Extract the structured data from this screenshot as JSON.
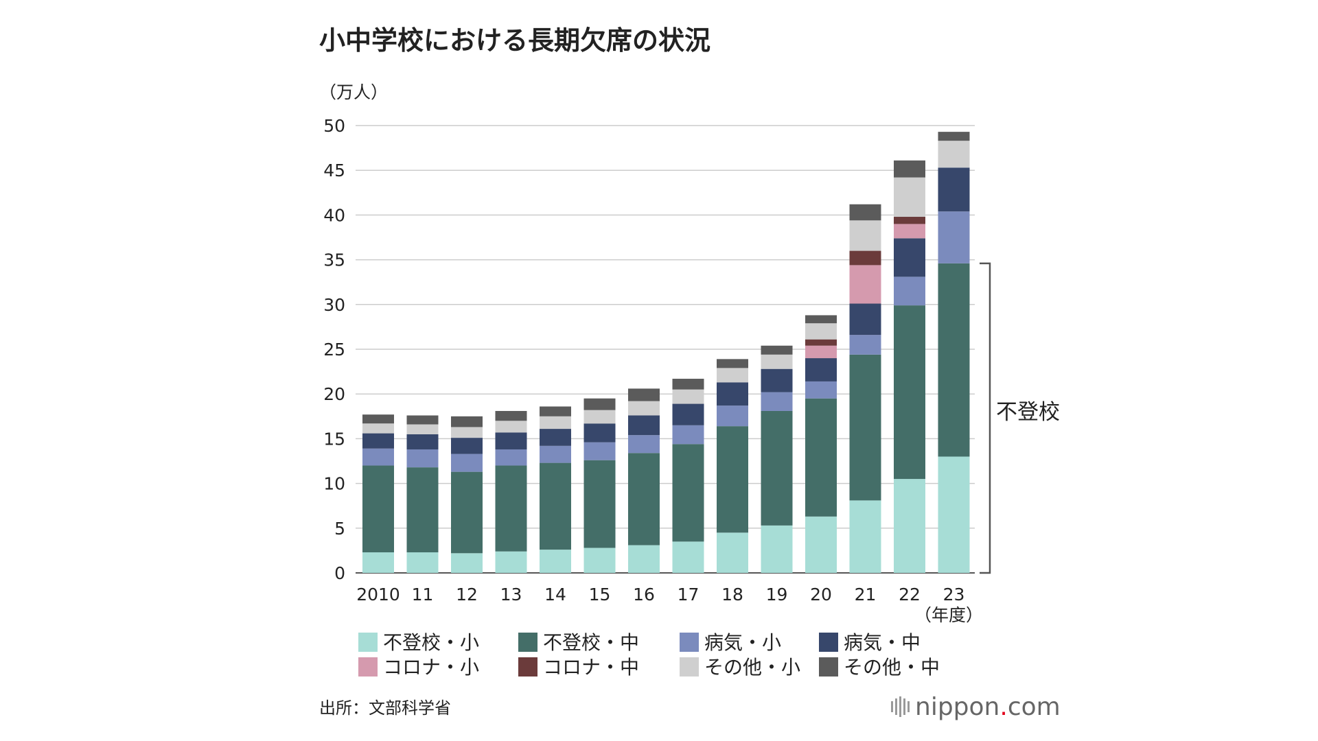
{
  "chart_data": {
    "type": "bar",
    "stacked": true,
    "title": "小中学校における長期欠席の状況",
    "unit_label": "（万人）",
    "categories": [
      "2010",
      "11",
      "12",
      "13",
      "14",
      "15",
      "16",
      "17",
      "18",
      "19",
      "20",
      "21",
      "22",
      "23"
    ],
    "x_unit_label": "（年度）",
    "ylim": [
      0,
      50
    ],
    "yticks": [
      0,
      5,
      10,
      15,
      20,
      25,
      30,
      35,
      40,
      45,
      50
    ],
    "grid": true,
    "legend_position": "bottom",
    "series": [
      {
        "name": "不登校・小",
        "color": "#a7ddd6",
        "values": [
          2.3,
          2.3,
          2.2,
          2.4,
          2.6,
          2.8,
          3.1,
          3.5,
          4.5,
          5.3,
          6.3,
          8.1,
          10.5,
          13.0
        ]
      },
      {
        "name": "不登校・中",
        "color": "#446e68",
        "values": [
          9.7,
          9.5,
          9.1,
          9.6,
          9.7,
          9.8,
          10.3,
          10.9,
          11.9,
          12.8,
          13.2,
          16.3,
          19.4,
          21.6
        ]
      },
      {
        "name": "病気・小",
        "color": "#7b8bbd",
        "values": [
          1.9,
          2.0,
          2.0,
          1.8,
          1.9,
          2.0,
          2.0,
          2.1,
          2.3,
          2.1,
          1.9,
          2.2,
          3.2,
          5.8
        ]
      },
      {
        "name": "病気・中",
        "color": "#37476b",
        "values": [
          1.7,
          1.7,
          1.8,
          1.9,
          1.9,
          2.1,
          2.2,
          2.4,
          2.6,
          2.6,
          2.6,
          3.5,
          4.3,
          4.9
        ]
      },
      {
        "name": "コロナ・小",
        "color": "#d59aae",
        "values": [
          0,
          0,
          0,
          0,
          0,
          0,
          0,
          0,
          0,
          0,
          1.4,
          4.3,
          1.6,
          0
        ]
      },
      {
        "name": "コロナ・中",
        "color": "#6b3b3b",
        "values": [
          0,
          0,
          0,
          0,
          0,
          0,
          0,
          0,
          0,
          0,
          0.7,
          1.6,
          0.8,
          0
        ]
      },
      {
        "name": "その他・小",
        "color": "#cfcfcf",
        "values": [
          1.1,
          1.1,
          1.2,
          1.3,
          1.4,
          1.5,
          1.6,
          1.6,
          1.6,
          1.6,
          1.8,
          3.4,
          4.4,
          3.0
        ]
      },
      {
        "name": "その他・中",
        "color": "#5b5b5b",
        "values": [
          1.0,
          1.0,
          1.2,
          1.1,
          1.1,
          1.3,
          1.4,
          1.2,
          1.0,
          1.0,
          0.9,
          1.8,
          1.9,
          1.0
        ]
      }
    ],
    "bracket_label": "不登校",
    "source": "出所：文部科学省",
    "logo": "nippon.com"
  }
}
